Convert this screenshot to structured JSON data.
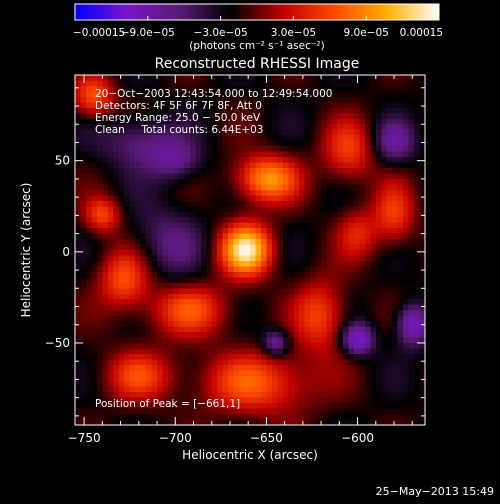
{
  "chart_data": {
    "type": "heatmap",
    "title": "Reconstructed RHESSI Image",
    "xlabel": "Heliocentric X (arcsec)",
    "ylabel": "Heliocentric Y (arcsec)",
    "xlim": [
      -755,
      -563
    ],
    "ylim": [
      -95,
      97
    ],
    "x_ticks": [
      -750,
      -700,
      -650,
      -600
    ],
    "x_tick_labels": [
      "−750",
      "−700",
      "−650",
      "−600"
    ],
    "y_ticks": [
      -50,
      0,
      50
    ],
    "y_tick_labels": [
      "−50",
      "0",
      "50"
    ],
    "colorbar": {
      "min": -0.00015,
      "max": 0.00015,
      "ticks": [
        -0.00015,
        -9e-05,
        -3e-05,
        3e-05,
        9e-05,
        0.00015
      ],
      "tick_labels": [
        "−0.00015",
        "−9.0e−05",
        "−3.0e−05",
        "3.0e−05",
        "9.0e−05",
        "0.00015"
      ],
      "units": "(photons cm⁻² s⁻¹ asec⁻²)",
      "colormap": [
        "#0000ff",
        "#7a16c8",
        "#5a1a78",
        "#000000",
        "#c00000",
        "#ff4a00",
        "#ffb000",
        "#ffffff"
      ]
    },
    "annotations": {
      "time_range": "20−Oct−2003 12:43:54.000 to 12:49:54.000",
      "detectors": "Detectors: 4F 5F 6F 7F 8F, Att 0",
      "energy_range": "Energy Range: 25.0 − 50.0 keV",
      "method_counts": "Clean     Total counts: 6.44E+03",
      "peak": "Position of Peak = [−661,1]"
    },
    "sources": [
      {
        "x": -661,
        "y": 1,
        "sx": 10,
        "sy": 10,
        "amp": 1.0
      },
      {
        "x": -650,
        "y": 40,
        "sx": 12,
        "sy": 9,
        "amp": 0.75
      },
      {
        "x": -692,
        "y": -32,
        "sx": 16,
        "sy": 10,
        "amp": 0.5
      },
      {
        "x": -728,
        "y": -15,
        "sx": 10,
        "sy": 12,
        "amp": 0.55
      },
      {
        "x": -620,
        "y": -35,
        "sx": 10,
        "sy": 14,
        "amp": 0.5
      },
      {
        "x": -655,
        "y": -72,
        "sx": 22,
        "sy": 12,
        "amp": 0.55
      },
      {
        "x": -720,
        "y": -68,
        "sx": 14,
        "sy": 10,
        "amp": 0.45
      },
      {
        "x": -580,
        "y": 20,
        "sx": 8,
        "sy": 12,
        "amp": 0.45
      },
      {
        "x": -605,
        "y": 55,
        "sx": 10,
        "sy": 12,
        "amp": 0.45
      },
      {
        "x": -745,
        "y": 85,
        "sx": 8,
        "sy": 8,
        "amp": 0.55
      },
      {
        "x": -740,
        "y": 20,
        "sx": 7,
        "sy": 7,
        "amp": 0.5
      },
      {
        "x": -600,
        "y": 10,
        "sx": 8,
        "sy": 10,
        "amp": 0.35
      },
      {
        "x": -700,
        "y": 50,
        "sx": 10,
        "sy": 8,
        "amp": -0.35
      },
      {
        "x": -720,
        "y": 60,
        "sx": 14,
        "sy": 10,
        "amp": -0.35
      },
      {
        "x": -600,
        "y": -48,
        "sx": 6,
        "sy": 6,
        "amp": -0.65
      },
      {
        "x": -570,
        "y": -40,
        "sx": 6,
        "sy": 8,
        "amp": -0.6
      },
      {
        "x": -645,
        "y": -50,
        "sx": 5,
        "sy": 5,
        "amp": -0.5
      },
      {
        "x": -580,
        "y": 60,
        "sx": 8,
        "sy": 8,
        "amp": -0.4
      },
      {
        "x": -705,
        "y": 5,
        "sx": 14,
        "sy": 14,
        "amp": -0.3
      }
    ]
  },
  "footer": {
    "date": "25−May−2013 15:49"
  }
}
